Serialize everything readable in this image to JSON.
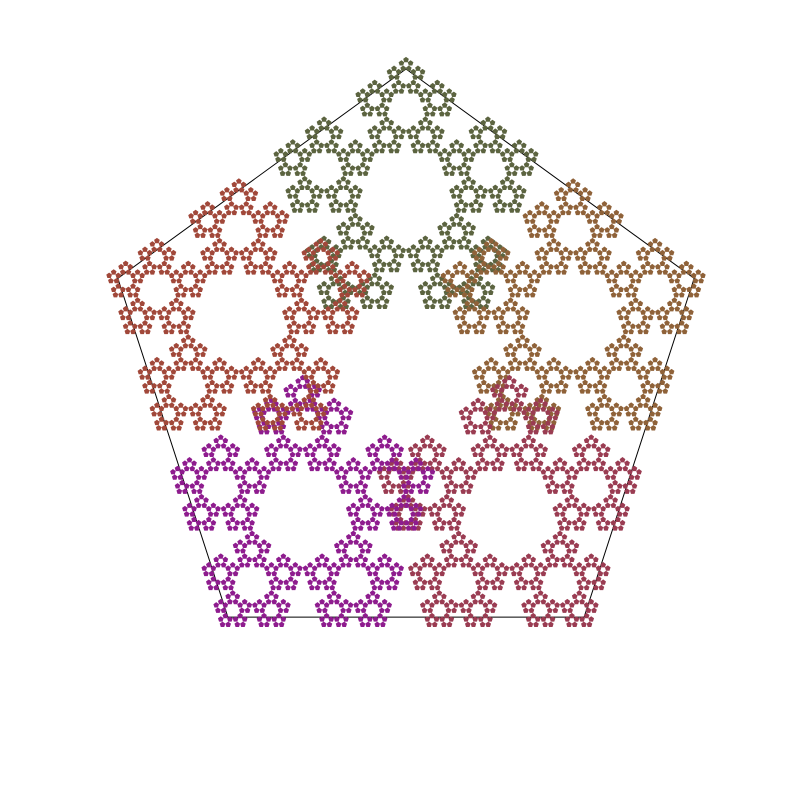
{
  "figure": {
    "kind": "pentaflake-fractal",
    "outline_color": "#000000",
    "background": "#ffffff",
    "recursion_depth": 4,
    "clusters": [
      {
        "position": "top",
        "color": "#5c6440"
      },
      {
        "position": "upper-right",
        "color": "#8f6239"
      },
      {
        "position": "lower-right",
        "color": "#9a3c52"
      },
      {
        "position": "lower-left",
        "color": "#8e1c8e"
      },
      {
        "position": "upper-left",
        "color": "#a1483a"
      }
    ]
  }
}
